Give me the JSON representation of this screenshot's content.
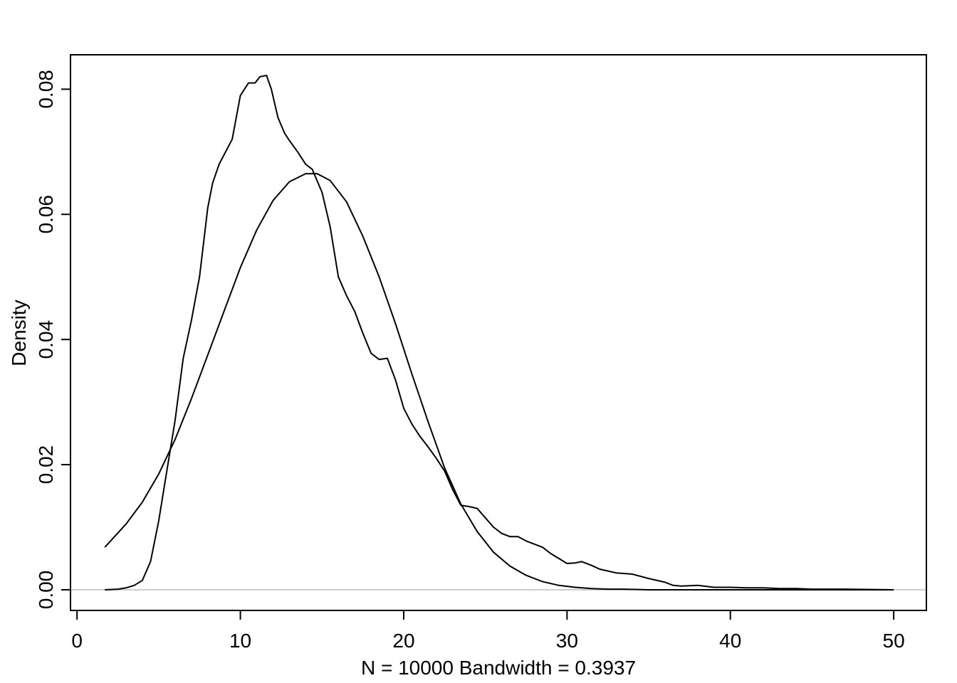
{
  "chart_data": {
    "type": "line",
    "title": "",
    "xlabel": "N = 10000   Bandwidth = 0.3937",
    "ylabel": "Density",
    "xlim": [
      -0.4,
      52.0
    ],
    "ylim": [
      -0.0033,
      0.0855
    ],
    "x_ticks": [
      0,
      10,
      20,
      30,
      40,
      50
    ],
    "x_tick_labels": [
      "0",
      "10",
      "20",
      "30",
      "40",
      "50"
    ],
    "y_ticks": [
      0.0,
      0.02,
      0.04,
      0.06,
      0.08
    ],
    "y_tick_labels": [
      "0.00",
      "0.02",
      "0.04",
      "0.06",
      "0.08"
    ],
    "grid": false,
    "zero_line": {
      "y": 0,
      "color": "#bebebe"
    },
    "series": [
      {
        "x": [
          1.7,
          2.5,
          3.0,
          3.5,
          4.0,
          4.5,
          5.0,
          5.5,
          6.0,
          6.5,
          7.0,
          7.5,
          8.0,
          8.3,
          8.7,
          9.0,
          9.5,
          10.0,
          10.5,
          10.9,
          11.2,
          11.6,
          11.9,
          12.3,
          12.7,
          13.0,
          13.5,
          14.0,
          14.4,
          15.0,
          15.5,
          16.0,
          16.5,
          17.0,
          17.5,
          18.0,
          18.5,
          19.0,
          19.5,
          20.0,
          20.5,
          21.0,
          21.5,
          22.0,
          22.5,
          23.0,
          23.5,
          24.0,
          24.5,
          25.0,
          25.5,
          26.0,
          26.5,
          27.0,
          27.5,
          28.0,
          28.5,
          29.0,
          29.5,
          30.0,
          30.5,
          30.9,
          31.5,
          32.0,
          33.0,
          34.0,
          35.0,
          36.0,
          36.5,
          37.0,
          38.0,
          39.0,
          40.0,
          41.0,
          42.0,
          43.0,
          44.0,
          45.0,
          46.0,
          47.0,
          50.0
        ],
        "values": [
          0.0,
          0.0001,
          0.0003,
          0.0007,
          0.0015,
          0.0045,
          0.011,
          0.019,
          0.027,
          0.037,
          0.043,
          0.05,
          0.061,
          0.065,
          0.068,
          0.0695,
          0.072,
          0.079,
          0.081,
          0.081,
          0.082,
          0.0822,
          0.08,
          0.0755,
          0.073,
          0.0718,
          0.07,
          0.068,
          0.0672,
          0.0635,
          0.058,
          0.05,
          0.047,
          0.0445,
          0.041,
          0.0378,
          0.0368,
          0.037,
          0.0335,
          0.029,
          0.0265,
          0.0245,
          0.0228,
          0.021,
          0.019,
          0.016,
          0.0135,
          0.0133,
          0.013,
          0.0115,
          0.01,
          0.009,
          0.0085,
          0.0085,
          0.0078,
          0.0073,
          0.0068,
          0.0058,
          0.005,
          0.0042,
          0.0043,
          0.0045,
          0.0039,
          0.0033,
          0.0027,
          0.0025,
          0.0018,
          0.0012,
          0.0007,
          0.0006,
          0.0007,
          0.0004,
          0.0004,
          0.0003,
          0.0003,
          0.0002,
          0.0002,
          0.0001,
          0.0001,
          0.0001,
          0.0
        ]
      },
      {
        "x": [
          1.7,
          3.0,
          4.0,
          5.0,
          6.0,
          7.0,
          8.0,
          9.0,
          10.0,
          11.0,
          12.0,
          13.0,
          14.0,
          14.7,
          15.5,
          16.5,
          17.5,
          18.5,
          19.5,
          20.5,
          21.5,
          22.5,
          23.5,
          24.5,
          25.5,
          26.5,
          27.5,
          28.5,
          29.5,
          30.5,
          31.5,
          32.5,
          33.5,
          35.0,
          37.0,
          40.0,
          45.0,
          50.0
        ],
        "values": [
          0.0068,
          0.0105,
          0.014,
          0.0185,
          0.024,
          0.0305,
          0.0375,
          0.0445,
          0.0515,
          0.0575,
          0.0622,
          0.0652,
          0.0665,
          0.0665,
          0.0654,
          0.062,
          0.0565,
          0.05,
          0.0425,
          0.0345,
          0.0268,
          0.0195,
          0.0137,
          0.0093,
          0.006,
          0.0038,
          0.0023,
          0.0013,
          0.0007,
          0.0004,
          0.0002,
          0.0001,
          0.0001,
          0.0,
          0.0,
          0.0,
          0.0,
          0.0
        ]
      }
    ]
  }
}
